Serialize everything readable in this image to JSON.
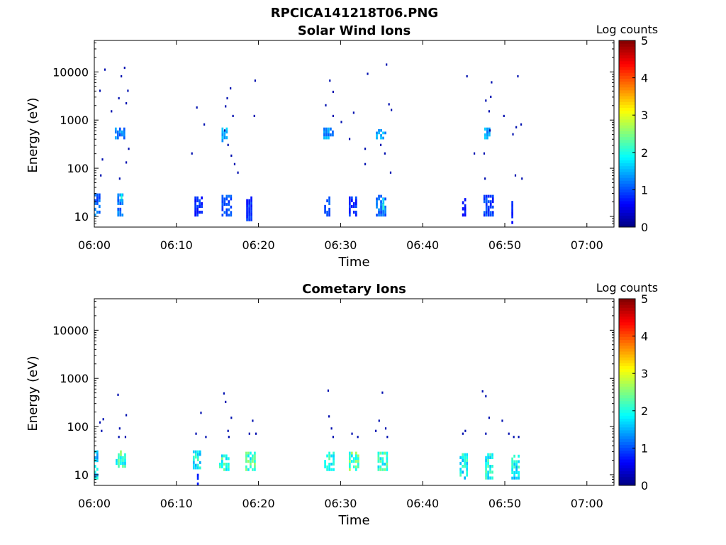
{
  "figure": {
    "title": "RPCICA141218T06.PNG"
  },
  "chart_data": [
    {
      "type": "heatmap",
      "title": "Solar Wind Ions",
      "xlabel": "Time",
      "ylabel": "Energy (eV)",
      "x_tick_labels": [
        "06:00",
        "06:10",
        "06:20",
        "06:30",
        "06:40",
        "06:50",
        "07:00"
      ],
      "x_ticks_minutes": [
        0,
        10,
        20,
        30,
        40,
        50,
        60
      ],
      "xlim_minutes": [
        0,
        63.3
      ],
      "y_scale": "log",
      "ylim": [
        6,
        45000
      ],
      "y_ticks": [
        10,
        100,
        1000,
        10000
      ],
      "y_tick_labels": [
        "10",
        "100",
        "1000",
        "10000"
      ],
      "colorbar": {
        "label": "Log counts",
        "range": [
          0,
          5
        ],
        "ticks": [
          "0",
          "1",
          "2",
          "3",
          "4",
          "5"
        ],
        "colormap": "jet"
      },
      "clusters": [
        {
          "t": 0.0,
          "dt": 0.8,
          "e": 10,
          "e2": 30,
          "level": 1.2
        },
        {
          "t": 2.8,
          "dt": 0.9,
          "e": 10,
          "e2": 30,
          "level": 1.3
        },
        {
          "t": 3.2,
          "dt": 0.2,
          "e": 18,
          "e2": 30,
          "level": 2.0
        },
        {
          "t": 2.5,
          "dt": 1.3,
          "e": 400,
          "e2": 700,
          "level": 1.3
        },
        {
          "t": 12.2,
          "dt": 1.0,
          "e": 10,
          "e2": 26,
          "level": 0.9
        },
        {
          "t": 15.5,
          "dt": 1.2,
          "e": 10,
          "e2": 28,
          "level": 1.1
        },
        {
          "t": 15.5,
          "dt": 0.7,
          "e": 350,
          "e2": 700,
          "level": 1.6
        },
        {
          "t": 18.5,
          "dt": 0.9,
          "e": 8,
          "e2": 26,
          "level": 0.9
        },
        {
          "t": 28.0,
          "dt": 0.9,
          "e": 10,
          "e2": 26,
          "level": 1.1
        },
        {
          "t": 27.9,
          "dt": 1.4,
          "e": 400,
          "e2": 700,
          "level": 1.5
        },
        {
          "t": 31.0,
          "dt": 1.0,
          "e": 10,
          "e2": 26,
          "level": 0.9
        },
        {
          "t": 34.3,
          "dt": 1.2,
          "e": 10,
          "e2": 28,
          "level": 1.2
        },
        {
          "t": 35.1,
          "dt": 0.3,
          "e": 12,
          "e2": 24,
          "level": 2.1
        },
        {
          "t": 34.3,
          "dt": 1.2,
          "e": 400,
          "e2": 650,
          "level": 1.5
        },
        {
          "t": 44.8,
          "dt": 0.5,
          "e": 10,
          "e2": 24,
          "level": 0.8
        },
        {
          "t": 47.4,
          "dt": 1.2,
          "e": 10,
          "e2": 28,
          "level": 1.0
        },
        {
          "t": 47.5,
          "dt": 0.7,
          "e": 400,
          "e2": 700,
          "level": 1.5
        },
        {
          "t": 50.8,
          "dt": 0.3,
          "e": 7,
          "e2": 24,
          "level": 0.8
        }
      ],
      "points": [
        [
          0.6,
          4000
        ],
        [
          1.2,
          11000
        ],
        [
          2.0,
          1500
        ],
        [
          3.2,
          8000
        ],
        [
          3.6,
          12000
        ],
        [
          4.0,
          4000
        ],
        [
          2.9,
          2800
        ],
        [
          3.8,
          2200
        ],
        [
          4.1,
          250
        ],
        [
          3.8,
          130
        ],
        [
          0.9,
          150
        ],
        [
          0.7,
          70
        ],
        [
          3.0,
          60
        ],
        [
          11.8,
          200
        ],
        [
          12.4,
          1800
        ],
        [
          13.3,
          800
        ],
        [
          15.9,
          1900
        ],
        [
          16.1,
          2800
        ],
        [
          16.5,
          4500
        ],
        [
          16.8,
          1200
        ],
        [
          15.8,
          600
        ],
        [
          16.2,
          300
        ],
        [
          16.6,
          180
        ],
        [
          17.0,
          120
        ],
        [
          17.4,
          80
        ],
        [
          19.5,
          6500
        ],
        [
          19.4,
          1200
        ],
        [
          28.6,
          6500
        ],
        [
          28.1,
          2000
        ],
        [
          29.0,
          3800
        ],
        [
          30.0,
          900
        ],
        [
          29.0,
          1200
        ],
        [
          31.5,
          1400
        ],
        [
          31.0,
          400
        ],
        [
          33.2,
          9000
        ],
        [
          32.9,
          250
        ],
        [
          32.9,
          120
        ],
        [
          35.5,
          14000
        ],
        [
          35.8,
          2100
        ],
        [
          36.1,
          1600
        ],
        [
          35.3,
          200
        ],
        [
          34.8,
          300
        ],
        [
          36.0,
          80
        ],
        [
          45.3,
          8000
        ],
        [
          46.2,
          200
        ],
        [
          47.4,
          200
        ],
        [
          47.6,
          2500
        ],
        [
          48.2,
          3000
        ],
        [
          48.0,
          1500
        ],
        [
          48.1,
          600
        ],
        [
          49.8,
          1200
        ],
        [
          50.9,
          500
        ],
        [
          51.3,
          700
        ],
        [
          51.9,
          800
        ],
        [
          52.0,
          60
        ],
        [
          51.2,
          70
        ],
        [
          51.5,
          8000
        ],
        [
          47.5,
          60
        ],
        [
          48.3,
          6000
        ]
      ]
    },
    {
      "type": "heatmap",
      "title": "Cometary Ions",
      "xlabel": "Time",
      "ylabel": "Energy (eV)",
      "x_tick_labels": [
        "06:00",
        "06:10",
        "06:20",
        "06:30",
        "06:40",
        "06:50",
        "07:00"
      ],
      "x_ticks_minutes": [
        0,
        10,
        20,
        30,
        40,
        50,
        60
      ],
      "xlim_minutes": [
        0,
        63.3
      ],
      "y_scale": "log",
      "ylim": [
        6,
        45000
      ],
      "y_ticks": [
        10,
        100,
        1000,
        10000
      ],
      "y_tick_labels": [
        "10",
        "100",
        "1000",
        "10000"
      ],
      "colorbar": {
        "label": "Log counts",
        "range": [
          0,
          5
        ],
        "ticks": [
          "0",
          "1",
          "2",
          "3",
          "4",
          "5"
        ],
        "colormap": "jet"
      },
      "clusters": [
        {
          "t": 0.0,
          "dt": 0.6,
          "e": 8,
          "e2": 32,
          "level": 1.8
        },
        {
          "t": 2.6,
          "dt": 1.3,
          "e": 14,
          "e2": 32,
          "level": 2.3
        },
        {
          "t": 12.0,
          "dt": 1.0,
          "e": 13,
          "e2": 32,
          "level": 2.0
        },
        {
          "t": 15.2,
          "dt": 1.4,
          "e": 12,
          "e2": 30,
          "level": 2.2
        },
        {
          "t": 18.4,
          "dt": 1.2,
          "e": 12,
          "e2": 30,
          "level": 2.3
        },
        {
          "t": 28.0,
          "dt": 1.2,
          "e": 12,
          "e2": 30,
          "level": 2.2
        },
        {
          "t": 31.0,
          "dt": 1.3,
          "e": 12,
          "e2": 30,
          "level": 2.4
        },
        {
          "t": 34.5,
          "dt": 1.2,
          "e": 12,
          "e2": 30,
          "level": 2.2
        },
        {
          "t": 44.5,
          "dt": 1.1,
          "e": 8,
          "e2": 28,
          "level": 2.0
        },
        {
          "t": 47.6,
          "dt": 1.1,
          "e": 8,
          "e2": 28,
          "level": 2.1
        },
        {
          "t": 50.8,
          "dt": 1.1,
          "e": 8,
          "e2": 26,
          "level": 2.0
        },
        {
          "t": 12.5,
          "dt": 0.3,
          "e": 6,
          "e2": 12,
          "level": 0.8
        }
      ],
      "points": [
        [
          0.6,
          120
        ],
        [
          1.0,
          140
        ],
        [
          0.8,
          80
        ],
        [
          2.8,
          450
        ],
        [
          3.0,
          90
        ],
        [
          3.8,
          170
        ],
        [
          3.7,
          60
        ],
        [
          2.9,
          60
        ],
        [
          12.3,
          70
        ],
        [
          12.9,
          190
        ],
        [
          13.5,
          60
        ],
        [
          15.7,
          480
        ],
        [
          15.9,
          320
        ],
        [
          16.2,
          80
        ],
        [
          16.6,
          150
        ],
        [
          16.3,
          60
        ],
        [
          18.8,
          70
        ],
        [
          19.6,
          70
        ],
        [
          19.2,
          130
        ],
        [
          28.4,
          550
        ],
        [
          28.5,
          160
        ],
        [
          28.8,
          90
        ],
        [
          29.0,
          60
        ],
        [
          31.3,
          70
        ],
        [
          32.0,
          60
        ],
        [
          34.6,
          130
        ],
        [
          35.0,
          500
        ],
        [
          35.4,
          90
        ],
        [
          34.2,
          80
        ],
        [
          35.6,
          60
        ],
        [
          44.8,
          70
        ],
        [
          45.1,
          80
        ],
        [
          47.2,
          530
        ],
        [
          47.6,
          420
        ],
        [
          48.0,
          150
        ],
        [
          47.6,
          70
        ],
        [
          49.6,
          130
        ],
        [
          50.4,
          70
        ],
        [
          51.6,
          60
        ],
        [
          51.0,
          60
        ]
      ]
    }
  ]
}
